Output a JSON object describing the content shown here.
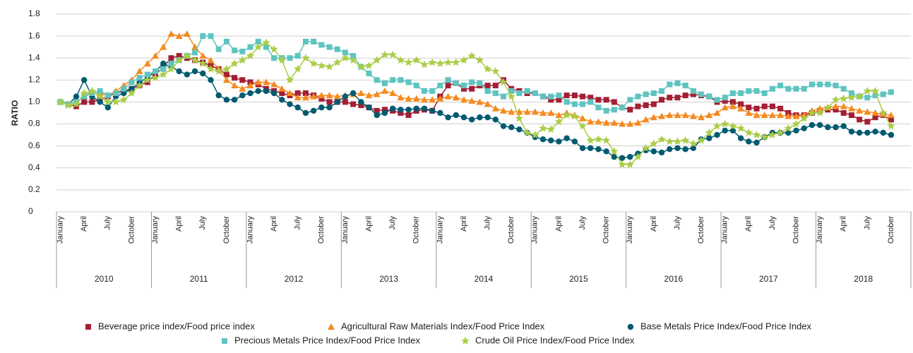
{
  "chart_data": {
    "type": "line",
    "y_label": "RATIO",
    "categories": [
      "January",
      null,
      null,
      "April",
      null,
      null,
      "July",
      null,
      null,
      "October",
      null,
      null,
      "January",
      null,
      null,
      "April",
      null,
      null,
      "July",
      null,
      null,
      "October",
      null,
      null,
      "January",
      null,
      null,
      "April",
      null,
      null,
      "July",
      null,
      null,
      "October",
      null,
      null,
      "January",
      null,
      null,
      "April",
      null,
      null,
      "July",
      null,
      null,
      "October",
      null,
      null,
      "January",
      null,
      null,
      "April",
      null,
      null,
      "July",
      null,
      null,
      "October",
      null,
      null,
      "January",
      null,
      null,
      "April",
      null,
      null,
      "July",
      null,
      null,
      "October",
      null,
      null,
      "January",
      null,
      null,
      "April",
      null,
      null,
      "July",
      null,
      null,
      "October",
      null,
      null,
      "January",
      null,
      null,
      "April",
      null,
      null,
      "July",
      null,
      null,
      "October",
      null,
      null,
      "January",
      null,
      null,
      "April",
      null,
      null,
      "July",
      null,
      null,
      "October"
    ],
    "years": [
      "2010",
      "2011",
      "2012",
      "2013",
      "2014",
      "2015",
      "2016",
      "2017",
      "2018"
    ],
    "ylim": [
      0,
      1.8
    ],
    "yticks": [
      0,
      0.2,
      0.4,
      0.6,
      0.8,
      {
        "value": 1,
        "label": "1.0"
      },
      1.2,
      1.4,
      1.6,
      1.8
    ],
    "grid": true,
    "legend": "bottom",
    "series": [
      {
        "name": "Beverage price index/Food price index",
        "color": "#a31f34",
        "marker": "square",
        "values": [
          1.0,
          0.98,
          0.96,
          1.0,
          1.0,
          1.02,
          1.05,
          1.08,
          1.1,
          1.12,
          1.15,
          1.18,
          1.25,
          1.32,
          1.4,
          1.42,
          1.4,
          1.38,
          1.36,
          1.33,
          1.3,
          1.25,
          1.22,
          1.2,
          1.18,
          1.16,
          1.12,
          1.1,
          1.08,
          1.06,
          1.08,
          1.08,
          1.06,
          1.03,
          1.0,
          1.0,
          1.0,
          0.98,
          0.97,
          0.95,
          0.92,
          0.93,
          0.92,
          0.9,
          0.88,
          0.92,
          0.93,
          0.92,
          1.05,
          1.15,
          1.17,
          1.12,
          1.12,
          1.15,
          1.15,
          1.15,
          1.2,
          1.12,
          1.1,
          1.08,
          1.08,
          1.05,
          1.02,
          1.02,
          1.06,
          1.06,
          1.05,
          1.04,
          1.02,
          1.02,
          1.0,
          0.95,
          0.93,
          0.96,
          0.97,
          0.98,
          1.02,
          1.04,
          1.04,
          1.06,
          1.07,
          1.06,
          1.05,
          1.0,
          1.01,
          1.0,
          0.98,
          0.95,
          0.94,
          0.96,
          0.96,
          0.94,
          0.9,
          0.88,
          0.88,
          0.9,
          0.92,
          0.93,
          0.93,
          0.9,
          0.88,
          0.84,
          0.82,
          0.86,
          0.88,
          0.84
        ]
      },
      {
        "name": "Agricultural Raw Materials Index/Food Price Index",
        "color": "#f58a1f",
        "marker": "triangle",
        "values": [
          1.0,
          0.98,
          1.0,
          1.05,
          1.1,
          1.08,
          1.06,
          1.1,
          1.15,
          1.2,
          1.28,
          1.35,
          1.42,
          1.5,
          1.62,
          1.6,
          1.62,
          1.5,
          1.42,
          1.38,
          1.3,
          1.2,
          1.15,
          1.12,
          1.15,
          1.18,
          1.18,
          1.16,
          1.12,
          1.08,
          1.04,
          1.04,
          1.05,
          1.06,
          1.06,
          1.05,
          1.06,
          1.07,
          1.08,
          1.06,
          1.07,
          1.1,
          1.08,
          1.04,
          1.03,
          1.03,
          1.02,
          1.02,
          1.03,
          1.05,
          1.04,
          1.02,
          1.01,
          1.0,
          0.98,
          0.94,
          0.92,
          0.91,
          0.91,
          0.91,
          0.91,
          0.9,
          0.9,
          0.88,
          0.9,
          0.88,
          0.85,
          0.82,
          0.82,
          0.81,
          0.81,
          0.8,
          0.8,
          0.81,
          0.84,
          0.86,
          0.87,
          0.88,
          0.88,
          0.88,
          0.87,
          0.86,
          0.88,
          0.9,
          0.95,
          0.96,
          0.94,
          0.9,
          0.88,
          0.88,
          0.88,
          0.88,
          0.87,
          0.87,
          0.88,
          0.92,
          0.94,
          0.95,
          0.96,
          0.96,
          0.94,
          0.92,
          0.91,
          0.9,
          0.89,
          0.88
        ]
      },
      {
        "name": "Base Metals Price Index/Food Price Index",
        "color": "#005a70",
        "marker": "circle",
        "values": [
          1.0,
          0.98,
          1.05,
          1.2,
          1.05,
          1.0,
          0.95,
          1.05,
          1.08,
          1.12,
          1.18,
          1.22,
          1.28,
          1.35,
          1.32,
          1.28,
          1.25,
          1.28,
          1.26,
          1.2,
          1.06,
          1.02,
          1.02,
          1.06,
          1.08,
          1.1,
          1.1,
          1.08,
          1.02,
          0.98,
          0.95,
          0.9,
          0.92,
          0.95,
          0.95,
          1.0,
          1.05,
          1.08,
          1.0,
          0.95,
          0.88,
          0.9,
          0.94,
          0.93,
          0.93,
          0.94,
          0.94,
          0.92,
          0.9,
          0.86,
          0.88,
          0.86,
          0.84,
          0.86,
          0.86,
          0.84,
          0.78,
          0.77,
          0.75,
          0.72,
          0.68,
          0.66,
          0.65,
          0.64,
          0.67,
          0.64,
          0.58,
          0.58,
          0.57,
          0.55,
          0.5,
          0.49,
          0.5,
          0.53,
          0.56,
          0.55,
          0.54,
          0.57,
          0.58,
          0.57,
          0.58,
          0.66,
          0.67,
          0.7,
          0.74,
          0.74,
          0.67,
          0.64,
          0.63,
          0.68,
          0.72,
          0.72,
          0.72,
          0.74,
          0.76,
          0.79,
          0.79,
          0.77,
          0.77,
          0.78,
          0.73,
          0.72,
          0.72,
          0.73,
          0.72,
          0.7
        ]
      },
      {
        "name": "Precious Metals Price Index/Food Price Index",
        "color": "#5ec4c0",
        "marker": "square",
        "values": [
          1.0,
          0.98,
          1.0,
          1.05,
          1.08,
          1.1,
          1.06,
          1.08,
          1.12,
          1.18,
          1.22,
          1.25,
          1.28,
          1.3,
          1.35,
          1.38,
          1.42,
          1.45,
          1.6,
          1.6,
          1.48,
          1.55,
          1.47,
          1.46,
          1.5,
          1.55,
          1.5,
          1.4,
          1.4,
          1.4,
          1.42,
          1.55,
          1.55,
          1.52,
          1.5,
          1.48,
          1.45,
          1.42,
          1.32,
          1.26,
          1.2,
          1.17,
          1.2,
          1.2,
          1.18,
          1.15,
          1.1,
          1.1,
          1.15,
          1.2,
          1.17,
          1.15,
          1.18,
          1.17,
          1.1,
          1.08,
          1.05,
          1.1,
          1.08,
          1.1,
          1.08,
          1.05,
          1.05,
          1.06,
          1.0,
          0.98,
          0.98,
          1.0,
          0.95,
          0.92,
          0.93,
          0.95,
          1.02,
          1.05,
          1.07,
          1.08,
          1.1,
          1.16,
          1.17,
          1.15,
          1.1,
          1.07,
          1.05,
          1.02,
          1.04,
          1.08,
          1.08,
          1.1,
          1.1,
          1.08,
          1.12,
          1.15,
          1.12,
          1.12,
          1.12,
          1.16,
          1.16,
          1.16,
          1.15,
          1.12,
          1.08,
          1.05,
          1.04,
          1.06,
          1.07,
          1.09
        ]
      },
      {
        "name": "Crude Oil Price Index/Food Price Index",
        "color": "#a9cd47",
        "marker": "star",
        "values": [
          1.0,
          0.97,
          0.98,
          1.08,
          1.1,
          1.05,
          1.0,
          1.0,
          1.02,
          1.08,
          1.15,
          1.2,
          1.22,
          1.25,
          1.3,
          1.38,
          1.42,
          1.38,
          1.35,
          1.3,
          1.28,
          1.3,
          1.35,
          1.38,
          1.42,
          1.5,
          1.54,
          1.48,
          1.38,
          1.2,
          1.3,
          1.4,
          1.35,
          1.33,
          1.32,
          1.36,
          1.4,
          1.38,
          1.32,
          1.33,
          1.38,
          1.43,
          1.43,
          1.38,
          1.36,
          1.38,
          1.34,
          1.36,
          1.35,
          1.36,
          1.36,
          1.38,
          1.42,
          1.38,
          1.3,
          1.28,
          1.18,
          1.05,
          0.85,
          0.72,
          0.7,
          0.76,
          0.75,
          0.82,
          0.88,
          0.87,
          0.78,
          0.65,
          0.66,
          0.65,
          0.55,
          0.43,
          0.43,
          0.5,
          0.58,
          0.62,
          0.66,
          0.64,
          0.64,
          0.65,
          0.62,
          0.65,
          0.72,
          0.78,
          0.8,
          0.78,
          0.76,
          0.72,
          0.7,
          0.68,
          0.7,
          0.72,
          0.76,
          0.8,
          0.85,
          0.9,
          0.9,
          0.95,
          1.02,
          1.03,
          1.04,
          1.05,
          1.1,
          1.1,
          0.9,
          0.78
        ]
      }
    ]
  }
}
